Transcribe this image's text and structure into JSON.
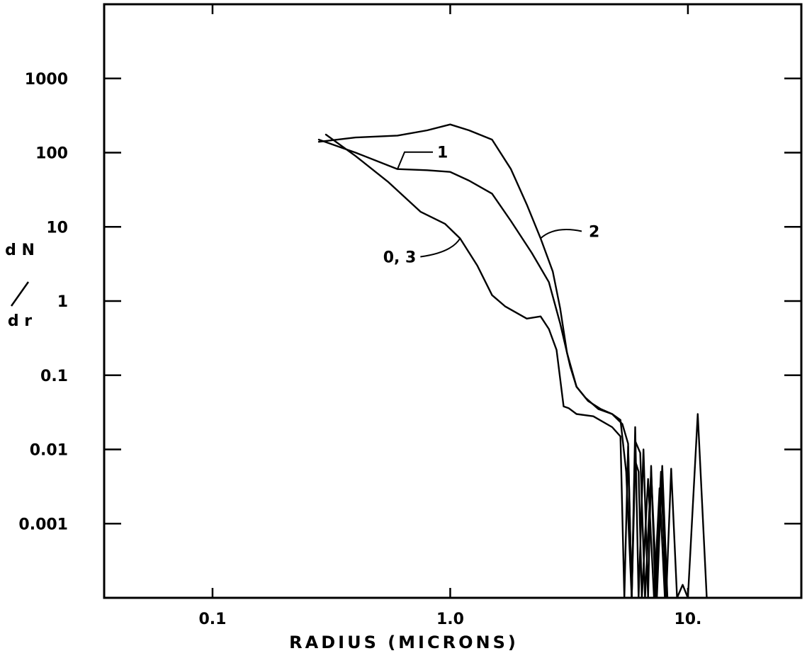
{
  "chart_data": {
    "type": "line",
    "xlabel": "RADIUS (MICRONS)",
    "ylabel_top": "d N",
    "ylabel_bottom": "d r",
    "x_scale": "log",
    "y_scale": "log",
    "xlim": [
      0.035,
      30
    ],
    "ylim": [
      0.0001,
      10000
    ],
    "x_ticks": [
      {
        "value": 0.1,
        "label": "0.1"
      },
      {
        "value": 1.0,
        "label": "1.0"
      },
      {
        "value": 10,
        "label": "10."
      }
    ],
    "y_ticks": [
      {
        "value": 1000,
        "label": "1000"
      },
      {
        "value": 100,
        "label": "100"
      },
      {
        "value": 10,
        "label": "10"
      },
      {
        "value": 1,
        "label": "1"
      },
      {
        "value": 0.1,
        "label": "0.1"
      },
      {
        "value": 0.01,
        "label": "0.01"
      },
      {
        "value": 0.001,
        "label": "0.001"
      }
    ],
    "grid": false,
    "series": [
      {
        "name": "0, 3",
        "x": [
          0.3,
          0.4,
          0.55,
          0.75,
          0.95,
          1.1,
          1.3,
          1.5,
          1.7,
          2.1,
          2.4,
          2.6,
          2.8,
          3.0,
          3.15,
          3.4,
          4.0,
          4.8,
          5.2,
          5.4,
          5.6,
          5.8,
          6.0,
          6.2,
          6.4,
          6.8,
          7.2,
          7.6,
          8.0
        ],
        "y": [
          175,
          90,
          40,
          16,
          11,
          7,
          3,
          1.2,
          0.85,
          0.58,
          0.62,
          0.42,
          0.22,
          0.038,
          0.036,
          0.03,
          0.028,
          0.02,
          0.015,
          0.0001,
          0.011,
          0.0001,
          0.007,
          0.005,
          0.0001,
          0.004,
          0.0001,
          0.003,
          0.0001
        ]
      },
      {
        "name": "1",
        "x": [
          0.28,
          0.4,
          0.6,
          0.8,
          1.0,
          1.2,
          1.5,
          1.8,
          2.2,
          2.6,
          2.9,
          3.2,
          3.4,
          3.7,
          4.2,
          4.8,
          5.3,
          5.6,
          5.8,
          6.0,
          6.3,
          6.6,
          7.0,
          7.4,
          7.8,
          8.2
        ],
        "y": [
          150,
          100,
          60,
          58,
          55,
          42,
          28,
          12,
          4.5,
          1.8,
          0.5,
          0.13,
          0.07,
          0.05,
          0.035,
          0.03,
          0.022,
          0.012,
          0.0001,
          0.013,
          0.009,
          0.0001,
          0.005,
          0.0001,
          0.006,
          0.0001
        ]
      },
      {
        "name": "2",
        "x": [
          0.28,
          0.4,
          0.6,
          0.8,
          1.0,
          1.2,
          1.5,
          1.8,
          2.1,
          2.4,
          2.7,
          2.9,
          3.1,
          3.4,
          3.8,
          4.3,
          4.8,
          5.2,
          5.5,
          5.8,
          6.0,
          6.2,
          6.5,
          6.8,
          7.0,
          7.3,
          7.7,
          8.1,
          8.5,
          9.0,
          9.5,
          10.0,
          11.0,
          12.0,
          13.0
        ],
        "y": [
          140,
          160,
          170,
          200,
          240,
          200,
          150,
          60,
          20,
          7,
          2.5,
          0.8,
          0.2,
          0.07,
          0.045,
          0.035,
          0.03,
          0.025,
          0.005,
          0.0001,
          0.02,
          0.0001,
          0.01,
          0.0001,
          0.006,
          0.0001,
          0.005,
          0.0001,
          0.0055,
          0.0001,
          0.00015,
          0.0001,
          0.03,
          0.0001,
          0.0001
        ]
      }
    ],
    "annotations": [
      {
        "label": "1",
        "series": "1"
      },
      {
        "label": "2",
        "series": "2"
      },
      {
        "label": "0, 3",
        "series": "0, 3"
      }
    ]
  }
}
